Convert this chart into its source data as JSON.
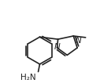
{
  "bg_color": "#ffffff",
  "line_color": "#222222",
  "line_width": 1.2,
  "font_size": 7.5,
  "h2n_label": "H₂N"
}
